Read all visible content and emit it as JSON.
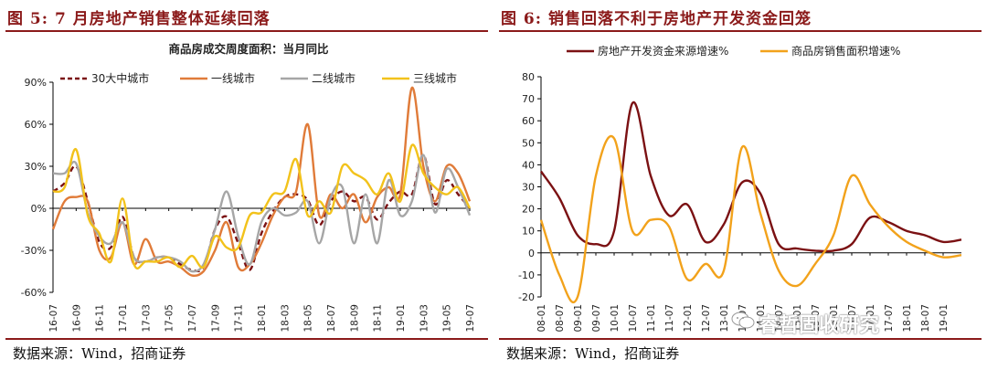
{
  "left_panel": {
    "fig_title": "图 5:  7 月房地产销售整体延续回落",
    "source": "数据来源：Wind，招商证券"
  },
  "right_panel": {
    "fig_title": "图 6:  销售回落不利于房地产开发资金回笼",
    "source": "数据来源：Wind，招商证券"
  },
  "watermark": "睿哲固收研究",
  "chart_data": [
    {
      "type": "line",
      "title": "商品房成交周度面积：当月同比",
      "x": [
        "16-07",
        "16-08",
        "16-09",
        "16-10",
        "16-11",
        "16-12",
        "17-01",
        "17-02",
        "17-03",
        "17-04",
        "17-05",
        "17-06",
        "17-07",
        "17-08",
        "17-09",
        "17-10",
        "17-11",
        "17-12",
        "18-01",
        "18-02",
        "18-03",
        "18-04",
        "18-05",
        "18-06",
        "18-07",
        "18-08",
        "18-09",
        "18-10",
        "18-11",
        "18-12",
        "19-01",
        "19-02",
        "19-03",
        "19-04",
        "19-05",
        "19-06",
        "19-07"
      ],
      "x_tick_labels": [
        "16-07",
        "16-09",
        "16-11",
        "17-01",
        "17-03",
        "17-05",
        "17-07",
        "17-09",
        "17-11",
        "18-01",
        "18-03",
        "18-05",
        "18-07",
        "18-09",
        "18-11",
        "19-01",
        "19-03",
        "19-05",
        "19-07"
      ],
      "yticks": [
        "90%",
        "60%",
        "30%",
        "0%",
        "-30%",
        "-60%"
      ],
      "ylim": [
        -60,
        90
      ],
      "unit": "%",
      "legend": "top",
      "series": [
        {
          "name": "30大中城市",
          "color": "#7b1113",
          "dash": true,
          "values": [
            12,
            18,
            30,
            5,
            -24,
            -28,
            -6,
            -35,
            -38,
            -35,
            -35,
            -40,
            -44,
            -42,
            -15,
            -6,
            -25,
            -44,
            -18,
            -2,
            8,
            10,
            6,
            -12,
            5,
            12,
            5,
            8,
            -8,
            4,
            12,
            10,
            38,
            3,
            20,
            10,
            0
          ]
        },
        {
          "name": "一线城市",
          "color": "#e07b39",
          "dash": false,
          "values": [
            -15,
            5,
            8,
            5,
            -30,
            -35,
            -10,
            -40,
            -22,
            -38,
            -38,
            -42,
            -48,
            -45,
            -30,
            -10,
            -42,
            -40,
            -25,
            -5,
            8,
            12,
            60,
            -5,
            10,
            0,
            10,
            -10,
            8,
            15,
            10,
            86,
            30,
            5,
            30,
            25,
            5
          ]
        },
        {
          "name": "二线城市",
          "color": "#a6a6a6",
          "dash": false,
          "values": [
            25,
            25,
            32,
            -3,
            -20,
            -25,
            -10,
            -35,
            -38,
            -35,
            -35,
            -38,
            -45,
            -40,
            -15,
            12,
            -20,
            -40,
            -10,
            0,
            -5,
            -3,
            5,
            -25,
            8,
            15,
            -25,
            10,
            -25,
            20,
            -5,
            5,
            38,
            -3,
            28,
            15,
            -5
          ]
        },
        {
          "name": "三线城市",
          "color": "#f2c21b",
          "dash": false,
          "values": [
            12,
            15,
            42,
            -5,
            -18,
            -38,
            7,
            -40,
            -38,
            -38,
            -35,
            -42,
            -34,
            -42,
            -20,
            -28,
            -28,
            -5,
            -3,
            10,
            12,
            35,
            -5,
            5,
            -3,
            30,
            25,
            20,
            10,
            25,
            5,
            45,
            25,
            15,
            10,
            15,
            0
          ]
        }
      ]
    },
    {
      "type": "line",
      "title": "",
      "x": [
        "08-01",
        "08-07",
        "09-01",
        "09-07",
        "10-01",
        "10-07",
        "11-01",
        "11-07",
        "12-01",
        "12-07",
        "13-01",
        "13-07",
        "14-01",
        "14-07",
        "15-01",
        "15-07",
        "16-01",
        "16-07",
        "17-01",
        "17-07",
        "18-01",
        "18-07",
        "19-01",
        "19-07"
      ],
      "x_tick_labels": [
        "08-01",
        "08-07",
        "09-01",
        "09-07",
        "10-01",
        "10-07",
        "11-01",
        "11-07",
        "12-01",
        "12-07",
        "13-01",
        "13-07",
        "14-01",
        "14-07",
        "15-01",
        "15-07",
        "16-01",
        "16-07",
        "17-01",
        "17-07",
        "18-01",
        "18-07",
        "19-01"
      ],
      "yticks": [
        "80",
        "70",
        "60",
        "50",
        "40",
        "30",
        "20",
        "10",
        "0",
        "-10",
        "-20"
      ],
      "ylim": [
        -20,
        80
      ],
      "legend": "top",
      "series": [
        {
          "name": "房地产开发资金来源增速%",
          "color": "#7b1113",
          "values": [
            37,
            25,
            8,
            4,
            10,
            68,
            35,
            17,
            22,
            5,
            13,
            32,
            27,
            4,
            2,
            1,
            1,
            4,
            16,
            14,
            10,
            8,
            5,
            6
          ]
        },
        {
          "name": "商品房销售面积增速%",
          "color": "#f2a21b",
          "values": [
            15,
            -10,
            -20,
            35,
            52,
            10,
            15,
            12,
            -12,
            -5,
            -8,
            48,
            18,
            -8,
            -15,
            -5,
            8,
            35,
            22,
            12,
            5,
            1,
            -2,
            -1
          ]
        }
      ]
    }
  ]
}
